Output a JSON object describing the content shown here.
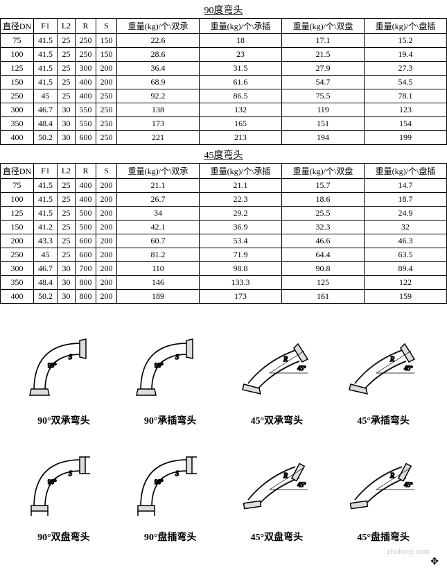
{
  "table1": {
    "title": "90度弯头",
    "headers": [
      "直径DN",
      "F1",
      "L2",
      "R",
      "S",
      "重量(kg)/个\\双承",
      "重量(kg)/个\\承插",
      "重量(kg)/个\\双盘",
      "重量(kg)/个\\盘插"
    ],
    "rows": [
      [
        "75",
        "41.5",
        "25",
        "250",
        "150",
        "22.6",
        "18",
        "17.1",
        "15.2"
      ],
      [
        "100",
        "41.5",
        "25",
        "250",
        "150",
        "28.6",
        "23",
        "21.5",
        "19.4"
      ],
      [
        "125",
        "41.5",
        "25",
        "300",
        "200",
        "36.4",
        "31.5",
        "27.9",
        "27.3"
      ],
      [
        "150",
        "41.5",
        "25",
        "400",
        "200",
        "68.9",
        "61.6",
        "54.7",
        "54.5"
      ],
      [
        "250",
        "45",
        "25",
        "400",
        "250",
        "92.2",
        "86.5",
        "75.5",
        "78.1"
      ],
      [
        "300",
        "46.7",
        "30",
        "550",
        "250",
        "138",
        "132",
        "119",
        "123"
      ],
      [
        "350",
        "48.4",
        "30",
        "550",
        "250",
        "173",
        "165",
        "151",
        "154"
      ],
      [
        "400",
        "50.2",
        "30",
        "600",
        "250",
        "221",
        "213",
        "194",
        "199"
      ]
    ]
  },
  "table2": {
    "title": "45度弯头",
    "headers": [
      "直径DN",
      "F1",
      "L2",
      "R",
      "S",
      "重量(kg)/个\\双承",
      "重量(kg)/个\\承插",
      "重量(kg)/个\\双盘",
      "重量(kg)/个\\盘插"
    ],
    "rows": [
      [
        "75",
        "41.5",
        "25",
        "400",
        "200",
        "21.1",
        "21.1",
        "15.7",
        "14.7"
      ],
      [
        "100",
        "41.5",
        "25",
        "400",
        "200",
        "26.7",
        "22.3",
        "18.6",
        "18.7"
      ],
      [
        "125",
        "41.5",
        "25",
        "500",
        "200",
        "34",
        "29.2",
        "25.5",
        "24.9"
      ],
      [
        "150",
        "41.2",
        "25",
        "500",
        "200",
        "42.1",
        "36.9",
        "32.3",
        "32"
      ],
      [
        "200",
        "43.3",
        "25",
        "600",
        "200",
        "60.7",
        "53.4",
        "46.6",
        "46.3"
      ],
      [
        "250",
        "45",
        "25",
        "600",
        "200",
        "81.2",
        "71.9",
        "64.4",
        "63.5"
      ],
      [
        "300",
        "46.7",
        "30",
        "700",
        "200",
        "110",
        "98.8",
        "90.8",
        "89.4"
      ],
      [
        "350",
        "48.4",
        "30",
        "800",
        "200",
        "146",
        "133.3",
        "125",
        "122"
      ],
      [
        "400",
        "50.2",
        "30",
        "800",
        "200",
        "189",
        "173",
        "161",
        "159"
      ]
    ]
  },
  "diagrams": {
    "row1": [
      {
        "label": "90°双承弯头",
        "angle": 90,
        "type": "socket-socket"
      },
      {
        "label": "90°承插弯头",
        "angle": 90,
        "type": "socket-spigot"
      },
      {
        "label": "45°双承弯头",
        "angle": 45,
        "type": "socket-socket"
      },
      {
        "label": "45°承插弯头",
        "angle": 45,
        "type": "socket-spigot"
      }
    ],
    "row2": [
      {
        "label": "90°双盘弯头",
        "angle": 90,
        "type": "flange-flange"
      },
      {
        "label": "90°盘插弯头",
        "angle": 90,
        "type": "flange-spigot"
      },
      {
        "label": "45°双盘弯头",
        "angle": 45,
        "type": "flange-flange"
      },
      {
        "label": "45°盘插弯头",
        "angle": 45,
        "type": "flange-spigot"
      }
    ]
  },
  "watermark": "zhulong.com",
  "colors": {
    "stroke": "#000",
    "fill_dark": "#555",
    "fill_light": "#ddd"
  }
}
